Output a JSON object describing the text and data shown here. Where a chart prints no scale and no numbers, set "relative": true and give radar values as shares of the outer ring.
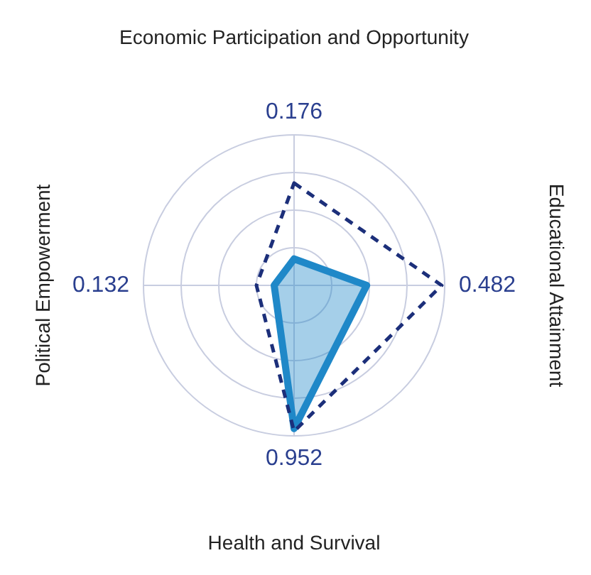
{
  "chart_data": {
    "type": "radar",
    "relative": true,
    "annotations": [
      "0.176",
      "0.482",
      "0.952",
      "0.132"
    ],
    "categories": [
      "Economic Participation and Opportunity",
      "Educational Attainment",
      "Health and Survival",
      "Political Empowerment"
    ],
    "series": [
      {
        "color": "#1f88c8",
        "values": [
          0.176,
          0.482,
          0.952,
          0.132
        ]
      },
      {
        "color": "#1c2f7a",
        "line_style": "dashed",
        "values": [
          0.68,
          0.98,
          0.97,
          0.25
        ]
      }
    ],
    "grid": true,
    "marker": "none"
  }
}
